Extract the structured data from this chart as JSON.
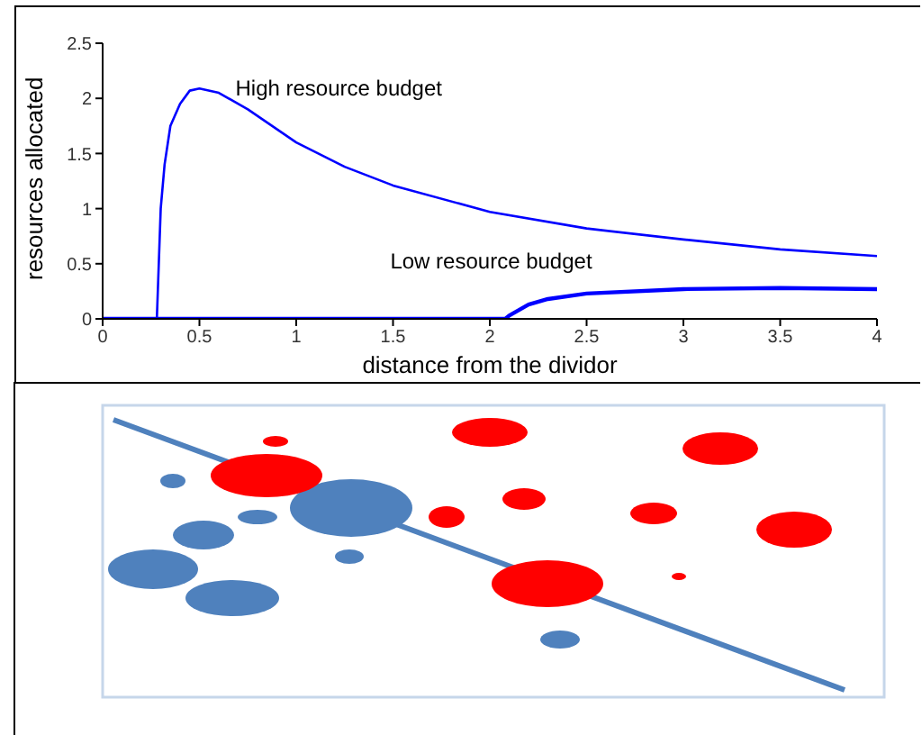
{
  "chart_data": {
    "type": "line",
    "xlabel": "distance from the dividor",
    "ylabel": "resources allocated",
    "series": [
      {
        "name": "High resource budget",
        "color": "#0000ff",
        "x": [
          0,
          0.28,
          0.3,
          0.32,
          0.35,
          0.4,
          0.45,
          0.5,
          0.6,
          0.75,
          1,
          1.25,
          1.5,
          2,
          2.5,
          3,
          3.5,
          4
        ],
        "values": [
          0,
          0,
          1.0,
          1.4,
          1.75,
          1.95,
          2.07,
          2.09,
          2.05,
          1.9,
          1.6,
          1.38,
          1.21,
          0.97,
          0.82,
          0.72,
          0.63,
          0.57
        ]
      },
      {
        "name": "Low resource budget",
        "color": "#0000ff",
        "x": [
          0,
          2.08,
          2.1,
          2.2,
          2.3,
          2.5,
          3,
          3.5,
          4
        ],
        "values": [
          0,
          0,
          0.03,
          0.13,
          0.18,
          0.23,
          0.27,
          0.28,
          0.27
        ]
      }
    ],
    "xlim": [
      0,
      4
    ],
    "xticks": [
      0,
      0.5,
      1,
      1.5,
      2,
      2.5,
      3,
      3.5,
      4
    ],
    "ylim": [
      0,
      2.5
    ],
    "yticks": [
      0,
      0.5,
      1,
      1.5,
      2,
      2.5
    ],
    "grid": false,
    "legend": false,
    "marker": "none",
    "line_style": "solid"
  }
}
